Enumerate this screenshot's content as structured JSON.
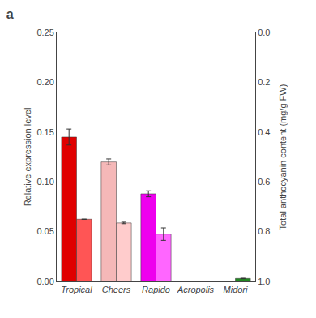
{
  "chart_data": {
    "type": "bar",
    "title": "a",
    "categories": [
      "Tropical",
      "Cheers",
      "Rapido",
      "Acropolis",
      "Midori"
    ],
    "series": [
      {
        "values": [
          0.145,
          0.12,
          0.088,
          0.0,
          0.0
        ],
        "errors": [
          0.008,
          0.003,
          0.003,
          0.0,
          0.0
        ],
        "colors": [
          "#e00000",
          "#f5b8b8",
          "#ee00ee",
          "#ffffff",
          "#ffffff"
        ]
      },
      {
        "values": [
          0.0625,
          0.05875,
          0.0475,
          0.0,
          0.003
        ],
        "errors": [
          0.0,
          0.00075,
          0.00625,
          0.0,
          0.00025
        ],
        "colors": [
          "#ff5555",
          "#ffcccc",
          "#ff66ff",
          "#ffffff",
          "#228822"
        ]
      }
    ],
    "ylabel": "Relative expression level",
    "y2label": "Total anthocyanin content (mg/g FW)",
    "ylim": [
      0.0,
      0.25
    ],
    "yticks": [
      {
        "value": 0.0,
        "label": "0.00"
      },
      {
        "value": 0.05,
        "label": "0.05"
      },
      {
        "value": 0.1,
        "label": "0.10"
      },
      {
        "value": 0.15,
        "label": "0.15"
      },
      {
        "value": 0.2,
        "label": "0.20"
      },
      {
        "value": 0.25,
        "label": "0.25"
      }
    ],
    "y2lim": [
      1.0,
      0.0
    ],
    "y2ticks": [
      {
        "value": 0.0,
        "label": "0.0"
      },
      {
        "value": 0.2,
        "label": "0.2"
      },
      {
        "value": 0.4,
        "label": "0.4"
      },
      {
        "value": 0.6,
        "label": "0.6"
      },
      {
        "value": 0.8,
        "label": "0.8"
      },
      {
        "value": 1.0,
        "label": "1.0"
      }
    ],
    "grid": false
  }
}
